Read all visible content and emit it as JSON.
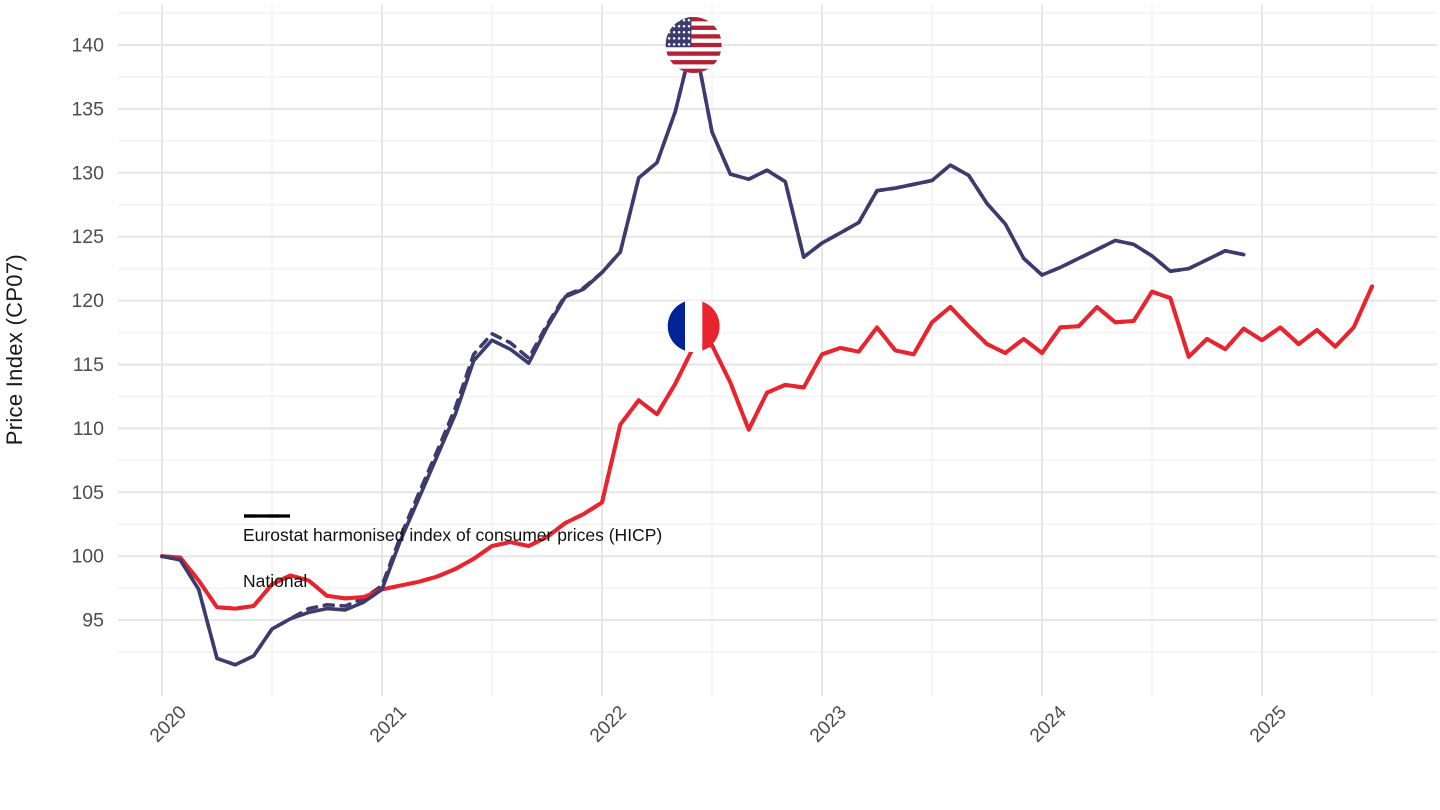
{
  "chart_data": {
    "type": "line",
    "title": "",
    "ylabel": "Price Index (CP07)",
    "xlabel": "",
    "x_axis": {
      "ticks": [
        "2020",
        "2021",
        "2022",
        "2023",
        "2024",
        "2025"
      ],
      "tick_angle_deg": 45
    },
    "y_axis": {
      "ticks": [
        "95",
        "100",
        "105",
        "110",
        "115",
        "120",
        "125",
        "130",
        "135",
        "140"
      ],
      "ylim": [
        89,
        143
      ],
      "grid": "major+minor"
    },
    "frequency": "monthly",
    "x_start": "2020-01",
    "legend": {
      "position": "inside-left-middle",
      "entries": [
        {
          "label": "Eurostat harmonised index of consumer prices (HICP)",
          "linetype": "dashed"
        },
        {
          "label": "National",
          "linetype": "solid"
        }
      ]
    },
    "series": [
      {
        "name": "United States — National",
        "color": "#3C3B6E",
        "linetype": "solid",
        "values": [
          100.0,
          99.7,
          97.4,
          92.0,
          91.5,
          92.2,
          94.3,
          95.1,
          95.6,
          95.9,
          95.8,
          96.4,
          97.4,
          101.2,
          104.5,
          107.8,
          111.1,
          115.3,
          116.9,
          116.2,
          115.1,
          117.9,
          120.3,
          120.9,
          122.2,
          123.8,
          129.6,
          130.8,
          134.8,
          140.6,
          133.2,
          129.9,
          129.5,
          130.2,
          129.3,
          123.4,
          124.5,
          125.3,
          126.1,
          128.6,
          128.8,
          129.1,
          129.4,
          130.6,
          129.8,
          127.6,
          126.0,
          123.3,
          122.0,
          122.6,
          123.3,
          124.0,
          124.7,
          124.4,
          123.5,
          122.3,
          122.5,
          123.2,
          123.9,
          123.6
        ]
      },
      {
        "name": "United States — HICP",
        "color": "#3C3B6E",
        "linetype": "dashed",
        "values": [
          100.0,
          99.7,
          97.4,
          92.0,
          91.5,
          92.2,
          94.3,
          95.1,
          95.9,
          96.2,
          96.1,
          96.7,
          97.7,
          101.5,
          104.9,
          108.2,
          111.6,
          115.8,
          117.4,
          116.7,
          115.5,
          118.1,
          120.4,
          121.0,
          122.2,
          123.8,
          129.6,
          130.8,
          134.8,
          140.6,
          133.2,
          129.9,
          129.5,
          130.2,
          129.3,
          123.4,
          124.5,
          125.3,
          126.1,
          128.6,
          128.8,
          129.1,
          129.4,
          130.6,
          129.8,
          127.6,
          126.0,
          123.3,
          122.0,
          122.6,
          123.3,
          124.0,
          124.7,
          124.4,
          123.5,
          122.3,
          122.5,
          123.2,
          123.9,
          123.6
        ]
      },
      {
        "name": "France — National",
        "color": "#E8242E",
        "linetype": "solid",
        "values": [
          100.0,
          99.9,
          98.1,
          96.0,
          95.9,
          96.1,
          97.8,
          98.5,
          98.1,
          96.9,
          96.7,
          96.8,
          97.4,
          97.7,
          98.0,
          98.4,
          99.0,
          99.8,
          100.8,
          101.1,
          100.8,
          101.5,
          102.6,
          103.3,
          104.2,
          110.3,
          112.2,
          111.1,
          113.5,
          116.4,
          116.5,
          113.6,
          109.9,
          112.8,
          113.4,
          113.2,
          115.8,
          116.3,
          116.0,
          117.9,
          116.1,
          115.8,
          118.3,
          119.5,
          118.0,
          116.6,
          115.9,
          117.0,
          115.9,
          117.9,
          118.0,
          119.5,
          118.3,
          118.4,
          120.7,
          120.2,
          115.6,
          117.0,
          116.2,
          117.8,
          116.9,
          117.9,
          116.6,
          117.7,
          116.4,
          117.9,
          121.1
        ]
      },
      {
        "name": "France — HICP",
        "color": "#E8242E",
        "linetype": "dashed",
        "values": [
          100.0,
          99.9,
          98.1,
          96.0,
          95.9,
          96.1,
          97.8,
          98.5,
          98.1,
          96.9,
          96.7,
          96.8,
          97.4,
          97.7,
          98.0,
          98.4,
          99.0,
          99.8,
          100.8,
          101.1,
          100.8,
          101.5,
          102.6,
          103.3,
          104.2,
          110.3,
          112.2,
          111.1,
          113.5,
          116.4,
          116.5,
          113.6,
          109.9,
          112.8,
          113.4,
          113.2,
          115.8,
          116.3,
          116.0,
          117.9,
          116.1,
          115.8,
          118.3,
          119.5,
          118.0,
          116.6,
          115.9,
          117.0,
          115.9,
          117.9,
          118.0,
          119.5,
          118.3,
          118.4,
          120.7,
          120.2,
          115.6,
          117.0,
          116.2,
          117.8,
          116.9,
          117.9,
          116.6,
          117.7,
          116.4,
          117.9,
          121.1
        ]
      }
    ],
    "annotations": [
      {
        "name": "us-flag-marker",
        "country": "United States",
        "month_index": 29,
        "at_value": 140.0,
        "radius": 28
      },
      {
        "name": "fr-flag-marker",
        "country": "France",
        "month_index": 29,
        "at_value": 118.0,
        "radius": 26
      }
    ],
    "colors": {
      "us_line": "#3C3B6E",
      "fr_line": "#E8242E",
      "grid_major": "#E6E6E6",
      "grid_minor": "#F3F3F3",
      "tick_text": "#4d4d4d",
      "label_text": "#1a1a1a",
      "legend_key": "#000000",
      "us_flag_blue": "#3C3B6E",
      "us_flag_red": "#B22234",
      "fr_flag_blue": "#002395",
      "fr_flag_red": "#E8242E",
      "background": "#ffffff"
    }
  }
}
